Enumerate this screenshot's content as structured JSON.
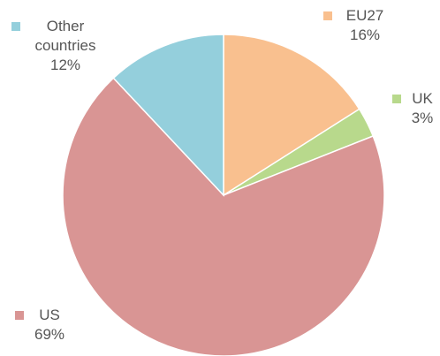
{
  "chart_data": {
    "type": "pie",
    "categories": [
      "EU27",
      "UK",
      "US",
      "Other countries"
    ],
    "values": [
      16,
      3,
      69,
      12
    ],
    "value_labels": [
      "16%",
      "3%",
      "69%",
      "12%"
    ],
    "colors": [
      "#f9c08f",
      "#b8d98c",
      "#d99594",
      "#94cfdc"
    ]
  }
}
